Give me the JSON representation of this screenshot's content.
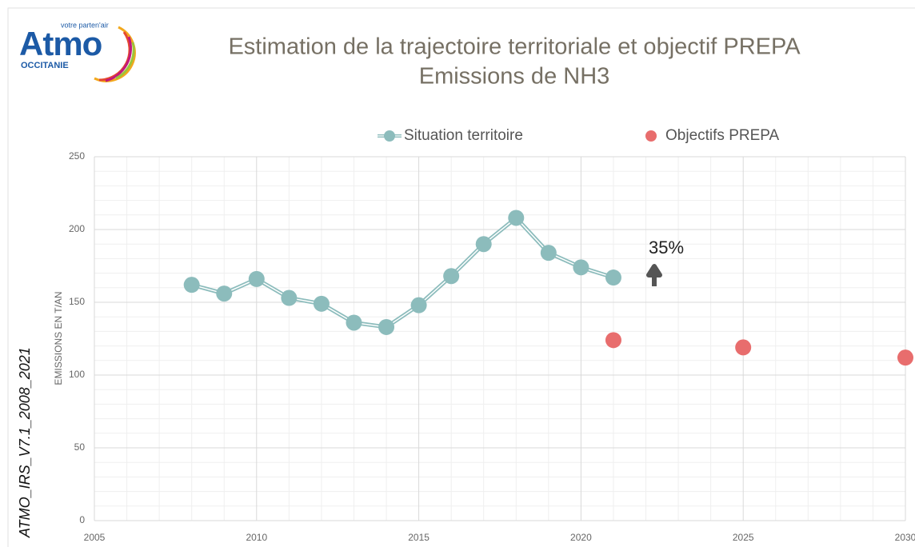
{
  "logo": {
    "brand": "Atmo",
    "tagline": "votre parten'air",
    "region": "OCCITANIE"
  },
  "side_label": "ATMO_IRS_V7.1_2008_2021",
  "chart_data": {
    "type": "line",
    "title": "Estimation de la trajectoire territoriale et objectif PREPA",
    "subtitle": "Emissions de NH3",
    "y_label": "EMISSIONS EN T/AN",
    "series": [
      {
        "name": "Situation territoire",
        "color": "#8cbcbc",
        "mode": "lines+markers",
        "x": [
          2008,
          2009,
          2010,
          2011,
          2012,
          2013,
          2014,
          2015,
          2016,
          2017,
          2018,
          2019,
          2020,
          2021
        ],
        "values": [
          162,
          156,
          166,
          153,
          149,
          136,
          133,
          148,
          168,
          190,
          208,
          184,
          174,
          167
        ]
      },
      {
        "name": "Objectifs PREPA",
        "color": "#e86d6d",
        "mode": "markers",
        "x": [
          2021,
          2025,
          2030
        ],
        "values": [
          124,
          119,
          112
        ]
      }
    ],
    "annotation": "35%",
    "xlim": [
      2005,
      2030
    ],
    "xticks": [
      2005,
      2010,
      2015,
      2020,
      2025,
      2030
    ],
    "ylim": [
      0,
      250
    ],
    "yticks": [
      0,
      50,
      100,
      150,
      200,
      250
    ],
    "grid": true,
    "minor_grid": true,
    "legend": "top"
  }
}
